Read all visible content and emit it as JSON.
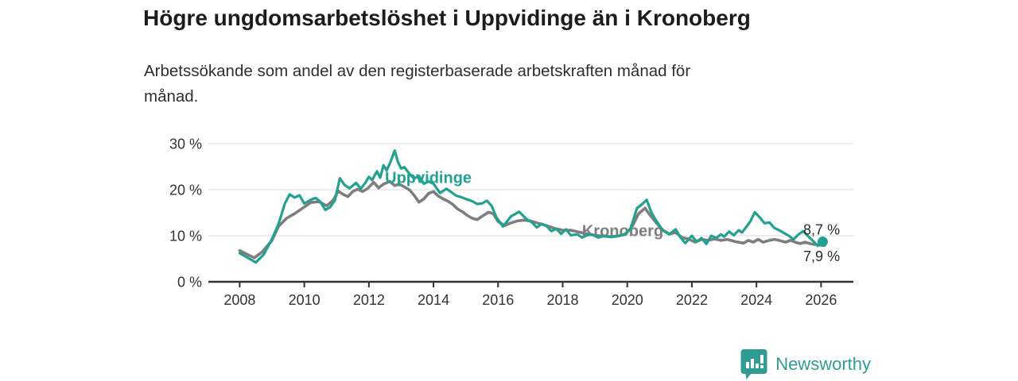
{
  "header": {
    "title": "Högre ungdomsarbetslöshet i Uppvidinge än i Kronoberg",
    "subtitle_line1": "Arbetssökande som andel av den registerbaserade arbetskraften månad för",
    "subtitle_line2": "månad."
  },
  "footer": {
    "brand": "Newsworthy",
    "brand_color": "#2f9c93",
    "logo_icon": "newsworthy-bubble-bar-chart-icon"
  },
  "chart_data": {
    "type": "line",
    "title": "Högre ungdomsarbetslöshet i Uppvidinge än i Kronoberg",
    "subtitle": "Arbetssökande som andel av den registerbaserade arbetskraften månad för månad.",
    "grid": true,
    "legend_position": "inline-labels",
    "colors": {
      "uppvidinge": "#21a190",
      "kronoberg": "#7e7e7e",
      "grid": "#d9d9d9",
      "axis": "#333333",
      "tick_label": "#333333",
      "value_label": "#2b2b2b"
    },
    "x_axis": {
      "domain": [
        2007.03,
        2027.0
      ],
      "ticks": [
        {
          "value": 2008,
          "label": "2008"
        },
        {
          "value": 2010,
          "label": "2010"
        },
        {
          "value": 2012,
          "label": "2012"
        },
        {
          "value": 2014,
          "label": "2014"
        },
        {
          "value": 2016,
          "label": "2016"
        },
        {
          "value": 2018,
          "label": "2018"
        },
        {
          "value": 2020,
          "label": "2020"
        },
        {
          "value": 2022,
          "label": "2022"
        },
        {
          "value": 2024,
          "label": "2024"
        },
        {
          "value": 2026,
          "label": "2026"
        }
      ]
    },
    "y_axis": {
      "domain": [
        0,
        31
      ],
      "ticks": [
        {
          "value": 0,
          "label": "0 %"
        },
        {
          "value": 10,
          "label": "10 %"
        },
        {
          "value": 20,
          "label": "20 %"
        },
        {
          "value": 30,
          "label": "30 %"
        }
      ]
    },
    "series": [
      {
        "name": "Kronoberg",
        "color": "#7e7e7e",
        "stroke_width": 3.6,
        "inline_label": {
          "text": "Kronoberg",
          "x": 2018.6,
          "y_baseline": 9.9
        },
        "end_value_label": {
          "text": "7,9 %",
          "x": 2025.45,
          "y_baseline": 4.5
        },
        "end_dot": false,
        "points": [
          [
            2008.0,
            6.8
          ],
          [
            2008.25,
            5.9
          ],
          [
            2008.45,
            5.2
          ],
          [
            2008.7,
            6.5
          ],
          [
            2009.0,
            9.0
          ],
          [
            2009.2,
            12.0
          ],
          [
            2009.45,
            13.8
          ],
          [
            2009.7,
            14.8
          ],
          [
            2009.95,
            16.0
          ],
          [
            2010.2,
            17.2
          ],
          [
            2010.45,
            17.4
          ],
          [
            2010.7,
            16.5
          ],
          [
            2010.9,
            17.8
          ],
          [
            2011.05,
            19.7
          ],
          [
            2011.2,
            19.0
          ],
          [
            2011.35,
            18.5
          ],
          [
            2011.5,
            19.6
          ],
          [
            2011.65,
            20.1
          ],
          [
            2011.8,
            19.6
          ],
          [
            2011.95,
            20.2
          ],
          [
            2012.15,
            21.6
          ],
          [
            2012.3,
            20.4
          ],
          [
            2012.45,
            21.2
          ],
          [
            2012.65,
            21.8
          ],
          [
            2012.8,
            20.9
          ],
          [
            2012.95,
            21.2
          ],
          [
            2013.1,
            20.6
          ],
          [
            2013.25,
            20.0
          ],
          [
            2013.4,
            18.8
          ],
          [
            2013.55,
            17.3
          ],
          [
            2013.7,
            18.0
          ],
          [
            2013.85,
            19.2
          ],
          [
            2014.0,
            19.6
          ],
          [
            2014.15,
            18.6
          ],
          [
            2014.3,
            18.0
          ],
          [
            2014.45,
            17.5
          ],
          [
            2014.6,
            16.8
          ],
          [
            2014.75,
            15.8
          ],
          [
            2014.9,
            15.2
          ],
          [
            2015.05,
            14.4
          ],
          [
            2015.2,
            13.8
          ],
          [
            2015.35,
            13.5
          ],
          [
            2015.5,
            14.2
          ],
          [
            2015.7,
            15.1
          ],
          [
            2015.85,
            14.8
          ],
          [
            2016.0,
            13.1
          ],
          [
            2016.2,
            12.2
          ],
          [
            2016.4,
            12.8
          ],
          [
            2016.6,
            13.2
          ],
          [
            2016.8,
            13.4
          ],
          [
            2017.0,
            13.2
          ],
          [
            2017.25,
            12.7
          ],
          [
            2017.5,
            12.2
          ],
          [
            2017.75,
            11.6
          ],
          [
            2018.0,
            11.2
          ],
          [
            2018.25,
            11.2
          ],
          [
            2018.5,
            10.8
          ],
          [
            2018.75,
            10.4
          ],
          [
            2019.0,
            10.1
          ],
          [
            2019.25,
            9.9
          ],
          [
            2019.5,
            9.8
          ],
          [
            2019.75,
            10.0
          ],
          [
            2019.95,
            10.4
          ],
          [
            2020.15,
            12.0
          ],
          [
            2020.35,
            14.8
          ],
          [
            2020.55,
            16.0
          ],
          [
            2020.7,
            14.5
          ],
          [
            2020.9,
            12.8
          ],
          [
            2021.1,
            11.2
          ],
          [
            2021.3,
            10.4
          ],
          [
            2021.5,
            10.7
          ],
          [
            2021.7,
            9.6
          ],
          [
            2021.9,
            9.3
          ],
          [
            2022.1,
            8.6
          ],
          [
            2022.3,
            9.2
          ],
          [
            2022.5,
            9.0
          ],
          [
            2022.7,
            9.3
          ],
          [
            2022.9,
            9.0
          ],
          [
            2023.1,
            9.2
          ],
          [
            2023.35,
            8.7
          ],
          [
            2023.6,
            8.4
          ],
          [
            2023.75,
            9.0
          ],
          [
            2023.9,
            8.6
          ],
          [
            2024.05,
            9.2
          ],
          [
            2024.2,
            8.6
          ],
          [
            2024.4,
            9.0
          ],
          [
            2024.55,
            9.2
          ],
          [
            2024.7,
            9.0
          ],
          [
            2024.9,
            8.6
          ],
          [
            2025.05,
            9.0
          ],
          [
            2025.2,
            8.6
          ],
          [
            2025.35,
            8.3
          ],
          [
            2025.5,
            8.6
          ],
          [
            2025.65,
            8.3
          ],
          [
            2025.8,
            8.1
          ],
          [
            2026.1,
            7.9
          ]
        ]
      },
      {
        "name": "Uppvidinge",
        "color": "#21a190",
        "stroke_width": 3.2,
        "inline_label": {
          "text": "Uppvidinge",
          "x": 2012.5,
          "y_baseline": 21.5
        },
        "end_value_label": {
          "text": "8,7 %",
          "x": 2025.45,
          "y_baseline": 10.3
        },
        "end_dot": true,
        "points": [
          [
            2008.0,
            6.2
          ],
          [
            2008.25,
            5.2
          ],
          [
            2008.5,
            4.2
          ],
          [
            2008.75,
            6.0
          ],
          [
            2009.0,
            9.3
          ],
          [
            2009.2,
            12.5
          ],
          [
            2009.4,
            17.0
          ],
          [
            2009.55,
            19.0
          ],
          [
            2009.7,
            18.3
          ],
          [
            2009.85,
            18.8
          ],
          [
            2010.0,
            17.0
          ],
          [
            2010.2,
            17.8
          ],
          [
            2010.35,
            18.2
          ],
          [
            2010.5,
            17.4
          ],
          [
            2010.65,
            15.6
          ],
          [
            2010.8,
            16.2
          ],
          [
            2010.95,
            17.7
          ],
          [
            2011.1,
            22.5
          ],
          [
            2011.25,
            21.0
          ],
          [
            2011.4,
            20.3
          ],
          [
            2011.6,
            21.5
          ],
          [
            2011.75,
            20.2
          ],
          [
            2011.9,
            21.6
          ],
          [
            2012.0,
            22.8
          ],
          [
            2012.1,
            22.1
          ],
          [
            2012.25,
            24.0
          ],
          [
            2012.35,
            22.6
          ],
          [
            2012.45,
            25.3
          ],
          [
            2012.55,
            24.2
          ],
          [
            2012.65,
            25.7
          ],
          [
            2012.8,
            28.5
          ],
          [
            2012.9,
            26.0
          ],
          [
            2013.0,
            24.6
          ],
          [
            2013.1,
            24.9
          ],
          [
            2013.25,
            23.5
          ],
          [
            2013.4,
            22.4
          ],
          [
            2013.55,
            23.0
          ],
          [
            2013.7,
            21.3
          ],
          [
            2013.85,
            21.8
          ],
          [
            2014.0,
            21.3
          ],
          [
            2014.2,
            19.3
          ],
          [
            2014.4,
            20.2
          ],
          [
            2014.55,
            19.5
          ],
          [
            2014.7,
            18.7
          ],
          [
            2014.85,
            18.4
          ],
          [
            2015.0,
            18.0
          ],
          [
            2015.2,
            17.5
          ],
          [
            2015.35,
            16.9
          ],
          [
            2015.5,
            17.0
          ],
          [
            2015.65,
            17.6
          ],
          [
            2015.8,
            16.5
          ],
          [
            2015.95,
            14.0
          ],
          [
            2016.15,
            12.0
          ],
          [
            2016.4,
            14.2
          ],
          [
            2016.65,
            15.2
          ],
          [
            2016.9,
            13.5
          ],
          [
            2017.05,
            12.9
          ],
          [
            2017.2,
            11.8
          ],
          [
            2017.35,
            12.6
          ],
          [
            2017.5,
            12.1
          ],
          [
            2017.65,
            11.0
          ],
          [
            2017.8,
            11.5
          ],
          [
            2017.95,
            10.4
          ],
          [
            2018.1,
            11.4
          ],
          [
            2018.25,
            10.1
          ],
          [
            2018.45,
            10.3
          ],
          [
            2018.6,
            9.6
          ],
          [
            2018.75,
            10.1
          ],
          [
            2018.9,
            10.3
          ],
          [
            2019.1,
            9.6
          ],
          [
            2019.3,
            10.0
          ],
          [
            2019.5,
            9.7
          ],
          [
            2019.7,
            9.9
          ],
          [
            2019.9,
            10.2
          ],
          [
            2020.1,
            11.5
          ],
          [
            2020.3,
            16.0
          ],
          [
            2020.45,
            16.8
          ],
          [
            2020.6,
            17.8
          ],
          [
            2020.75,
            15.0
          ],
          [
            2020.9,
            13.2
          ],
          [
            2021.1,
            11.2
          ],
          [
            2021.3,
            10.3
          ],
          [
            2021.5,
            11.4
          ],
          [
            2021.65,
            9.6
          ],
          [
            2021.8,
            8.4
          ],
          [
            2022.0,
            10.0
          ],
          [
            2022.15,
            8.7
          ],
          [
            2022.3,
            9.5
          ],
          [
            2022.45,
            8.2
          ],
          [
            2022.6,
            10.0
          ],
          [
            2022.75,
            9.5
          ],
          [
            2022.9,
            10.3
          ],
          [
            2023.0,
            9.8
          ],
          [
            2023.15,
            10.9
          ],
          [
            2023.3,
            10.1
          ],
          [
            2023.45,
            11.2
          ],
          [
            2023.55,
            10.7
          ],
          [
            2023.65,
            11.6
          ],
          [
            2023.8,
            13.0
          ],
          [
            2023.95,
            15.1
          ],
          [
            2024.1,
            14.0
          ],
          [
            2024.25,
            12.7
          ],
          [
            2024.4,
            12.9
          ],
          [
            2024.55,
            11.7
          ],
          [
            2024.7,
            11.2
          ],
          [
            2024.85,
            10.6
          ],
          [
            2025.0,
            10.0
          ],
          [
            2025.15,
            9.2
          ],
          [
            2025.3,
            10.3
          ],
          [
            2025.45,
            11.0
          ],
          [
            2025.6,
            9.9
          ],
          [
            2025.75,
            8.9
          ],
          [
            2025.9,
            7.8
          ],
          [
            2026.05,
            8.7
          ]
        ]
      }
    ]
  }
}
